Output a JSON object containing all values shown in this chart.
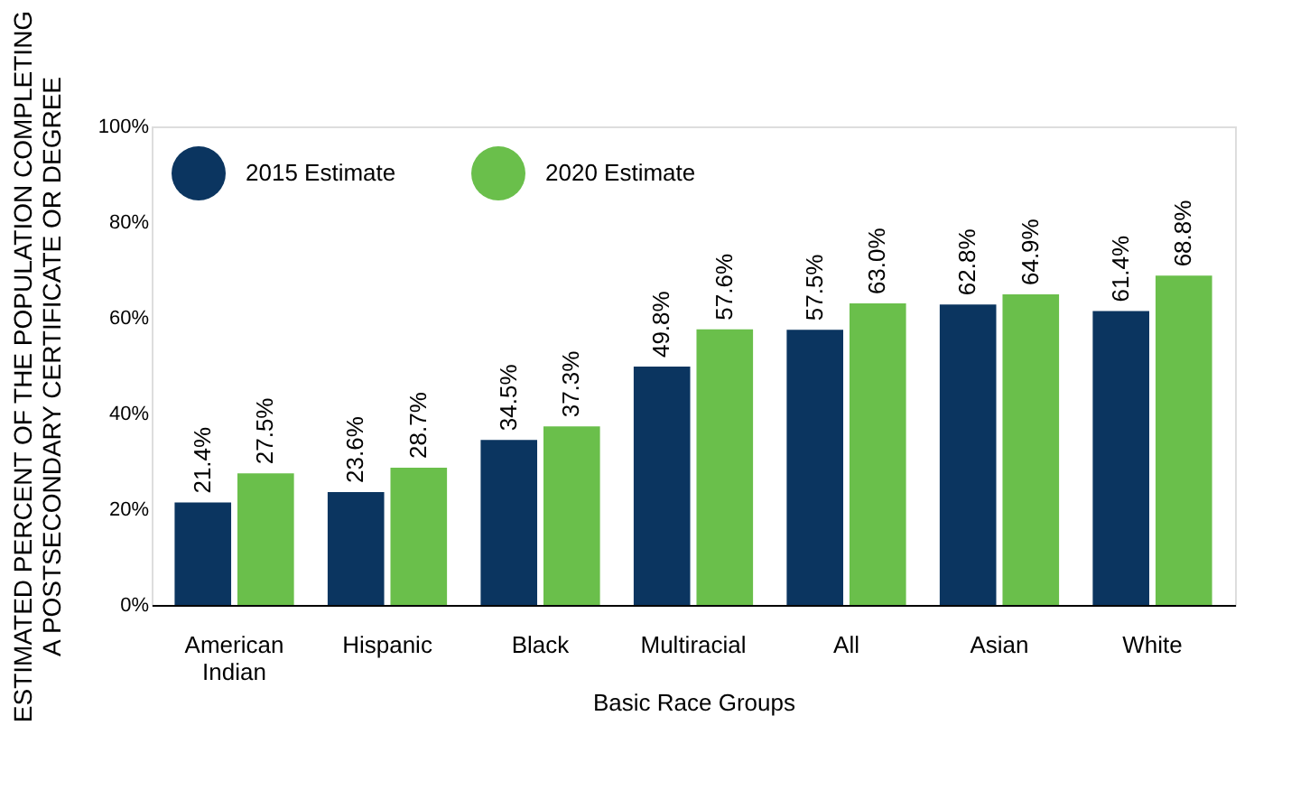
{
  "chart_data": {
    "type": "bar",
    "xlabel": "Basic Race Groups",
    "ylabel": "ESTIMATED PERCENT OF THE POPULATION COMPLETING A POSTSECONDARY CERTIFICATE OR DEGREE",
    "categories": [
      "American Indian",
      "Hispanic",
      "Black",
      "Multiracial",
      "All",
      "Asian",
      "White"
    ],
    "series": [
      {
        "name": "2015 Estimate",
        "color": "#0b3560",
        "values": [
          21.4,
          23.6,
          34.5,
          49.8,
          57.5,
          62.8,
          61.4
        ],
        "value_labels": [
          "21.4%",
          "23.6%",
          "34.5%",
          "49.8%",
          "57.5%",
          "62.8%",
          "61.4%"
        ]
      },
      {
        "name": "2020 Estimate",
        "color": "#6abf4b",
        "values": [
          27.5,
          28.7,
          37.3,
          57.6,
          63.0,
          64.9,
          68.8
        ],
        "value_labels": [
          "27.5%",
          "28.7%",
          "37.3%",
          "57.6%",
          "63.0%",
          "64.9%",
          "68.8%"
        ]
      }
    ],
    "ylim": [
      0,
      100
    ],
    "yticks": [
      {
        "value": 0,
        "label": "0%"
      },
      {
        "value": 20,
        "label": "20%"
      },
      {
        "value": 40,
        "label": "40%"
      },
      {
        "value": 60,
        "label": "60%"
      },
      {
        "value": 80,
        "label": "80%"
      },
      {
        "value": 100,
        "label": "100%"
      }
    ],
    "grid": false,
    "legend": "top left"
  }
}
